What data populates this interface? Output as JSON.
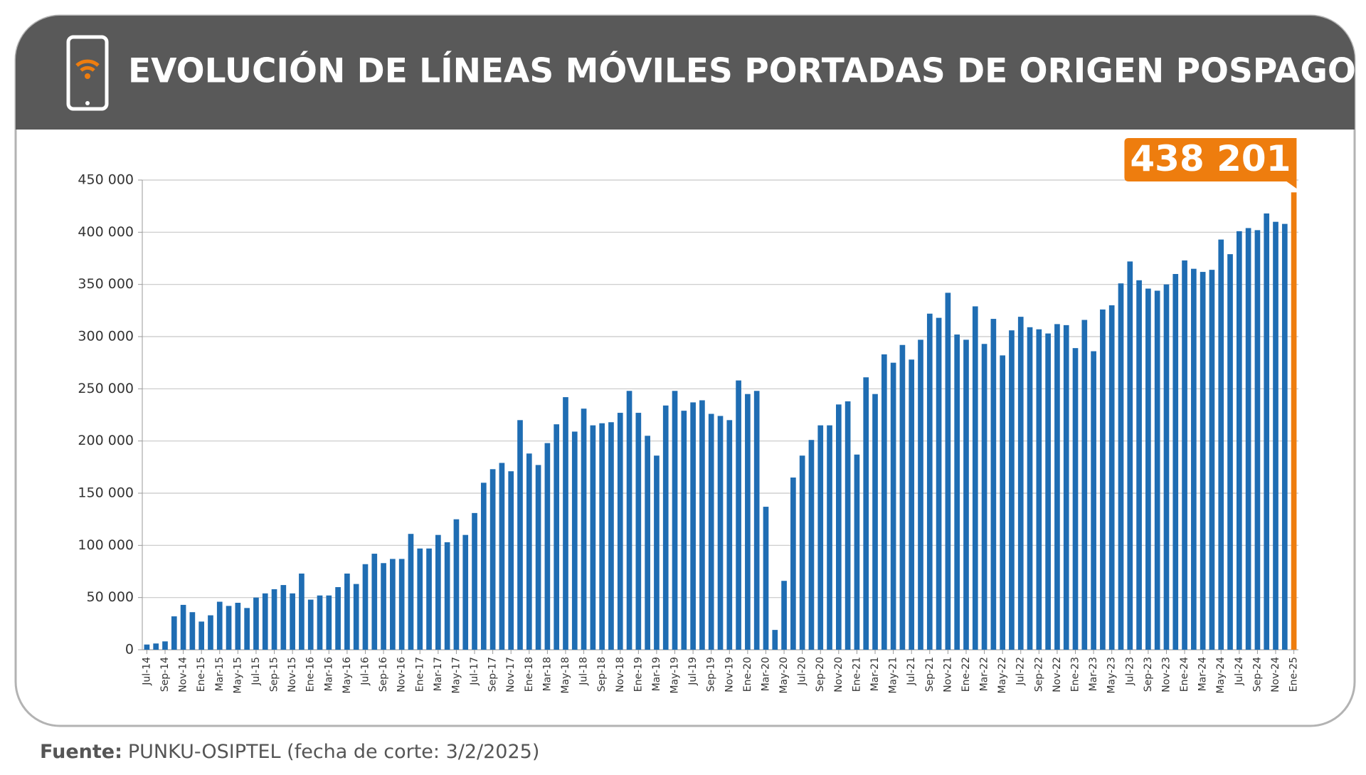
{
  "chart_data": {
    "type": "bar",
    "title": "EVOLUCIÓN DE LÍNEAS MÓVILES PORTADAS DE ORIGEN POSPAGO",
    "source_label": "Fuente:",
    "source": "PUNKU-OSIPTEL (fecha de corte: 3/2/2025)",
    "categories": [
      "Jul-14",
      null,
      "Sep-14",
      null,
      "Nov-14",
      null,
      "Ene-15",
      null,
      "Mar-15",
      null,
      "May-15",
      null,
      "Jul-15",
      null,
      "Sep-15",
      null,
      "Nov-15",
      null,
      "Ene-16",
      null,
      "Mar-16",
      null,
      "May-16",
      null,
      "Jul-16",
      null,
      "Sep-16",
      null,
      "Nov-16",
      null,
      "Ene-17",
      null,
      "Mar-17",
      null,
      "May-17",
      null,
      "Jul-17",
      null,
      "Sep-17",
      null,
      "Nov-17",
      null,
      "Ene-18",
      null,
      "Mar-18",
      null,
      "May-18",
      null,
      "Jul-18",
      null,
      "Sep-18",
      null,
      "Nov-18",
      null,
      "Ene-19",
      null,
      "Mar-19",
      null,
      "May-19",
      null,
      "Jul-19",
      null,
      "Sep-19",
      null,
      "Nov-19",
      null,
      "Ene-20",
      null,
      "Mar-20",
      null,
      "May-20",
      null,
      "Jul-20",
      null,
      "Sep-20",
      null,
      "Nov-20",
      null,
      "Ene-21",
      null,
      "Mar-21",
      null,
      "May-21",
      null,
      "Jul-21",
      null,
      "Sep-21",
      null,
      "Nov-21",
      null,
      "Ene-22",
      null,
      "Mar-22",
      null,
      "May-22",
      null,
      "Jul-22",
      null,
      "Sep-22",
      null,
      "Nov-22",
      null,
      "Ene-23",
      null,
      "Mar-23",
      null,
      "May-23",
      null,
      "Jul-23",
      null,
      "Sep-23",
      null,
      "Nov-23",
      null,
      "Ene-24",
      null,
      "Mar-24",
      null,
      "May-24",
      null,
      "Jul-24",
      null,
      "Sep-24",
      null,
      "Nov-24",
      null,
      "Ene-25"
    ],
    "values": [
      5000,
      6000,
      8000,
      32000,
      43000,
      36000,
      27000,
      33000,
      46000,
      42000,
      45000,
      40000,
      50000,
      54000,
      58000,
      62000,
      54000,
      73000,
      48000,
      52000,
      52000,
      60000,
      73000,
      63000,
      82000,
      92000,
      83000,
      87000,
      87000,
      111000,
      97000,
      97000,
      110000,
      103000,
      125000,
      110000,
      131000,
      160000,
      173000,
      179000,
      171000,
      220000,
      188000,
      177000,
      198000,
      216000,
      242000,
      209000,
      231000,
      215000,
      217000,
      218000,
      227000,
      248000,
      227000,
      205000,
      186000,
      234000,
      248000,
      229000,
      237000,
      239000,
      226000,
      224000,
      220000,
      258000,
      245000,
      248000,
      137000,
      19000,
      66000,
      165000,
      186000,
      201000,
      215000,
      215000,
      235000,
      238000,
      187000,
      261000,
      245000,
      283000,
      275000,
      292000,
      278000,
      297000,
      322000,
      318000,
      342000,
      302000,
      297000,
      329000,
      293000,
      317000,
      282000,
      306000,
      319000,
      309000,
      307000,
      303000,
      312000,
      311000,
      289000,
      316000,
      286000,
      326000,
      330000,
      351000,
      372000,
      354000,
      346000,
      344000,
      350000,
      360000,
      373000,
      365000,
      362000,
      364000,
      393000,
      379000,
      401000,
      404000,
      402000,
      418000,
      410000,
      408000,
      438201
    ],
    "value_labels": [
      null,
      null,
      null,
      null,
      null,
      null,
      null,
      null,
      null,
      null,
      null,
      null,
      null,
      null,
      null,
      null,
      null,
      null,
      null,
      null,
      null,
      null,
      null,
      null,
      null,
      null,
      null,
      null,
      null,
      null,
      null,
      null,
      null,
      null,
      null,
      null,
      null,
      null,
      null,
      null,
      null,
      null,
      null,
      null,
      null,
      null,
      null,
      null,
      null,
      null,
      null,
      null,
      null,
      null,
      null,
      null,
      null,
      null,
      null,
      null,
      null,
      null,
      null,
      null,
      null,
      null,
      null,
      null,
      null,
      null,
      null,
      null,
      null,
      null,
      null,
      null,
      null,
      null,
      null,
      null,
      null,
      null,
      null,
      null,
      null,
      null,
      null,
      null,
      null,
      null,
      null,
      null,
      null,
      null,
      null,
      null,
      null,
      null,
      null,
      null,
      null,
      null,
      null,
      null,
      null,
      null,
      null,
      null,
      null,
      null,
      null,
      null,
      null,
      null,
      null,
      null,
      null,
      null,
      null,
      null,
      null,
      null,
      null,
      null,
      null,
      null,
      "438 201"
    ],
    "color": "#1f6db3",
    "highlight_color": "#ee7d0e",
    "ylim": [
      0,
      450000
    ],
    "yticks": [
      0,
      {
        "value": 50000,
        "label": "50 000"
      },
      {
        "value": 100000,
        "label": "100 000"
      },
      {
        "value": 150000,
        "label": "150 000"
      },
      {
        "value": 200000,
        "label": "200 000"
      },
      {
        "value": 250000,
        "label": "250 000"
      },
      {
        "value": 300000,
        "label": "300 000"
      },
      {
        "value": 350000,
        "label": "350 000"
      },
      {
        "value": 400000,
        "label": "400 000"
      },
      {
        "value": 450000,
        "label": "450 000"
      }
    ],
    "grid": true
  }
}
